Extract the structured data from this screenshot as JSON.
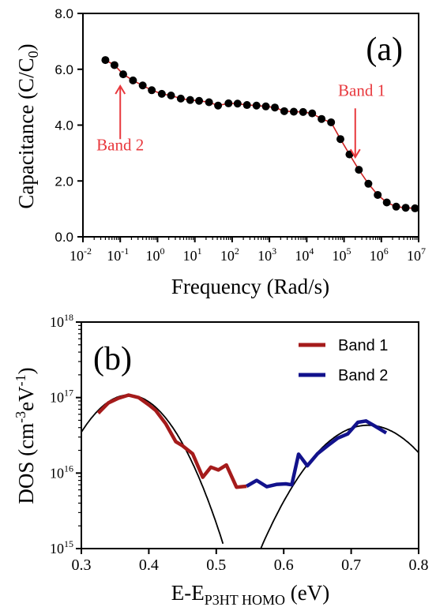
{
  "colors": {
    "axis": "#000000",
    "marker": "#000000",
    "fit_line": "#cc2222",
    "annotation": "#e8383d",
    "band1": "#a51b1b",
    "band2": "#12128c",
    "gaussian": "#000000"
  },
  "chart_data": [
    {
      "type": "scatter",
      "panel_label": "(a)",
      "xlabel": "Frequency (Rad/s)",
      "ylabel": "Capacitance (C/C",
      "ylabel_sub": "0",
      "ylabel_close": ")",
      "x_scale": "log",
      "xlim": [
        0.01,
        10000000
      ],
      "ylim": [
        0,
        8
      ],
      "x_tick_exponents": [
        "-2",
        "-1",
        "0",
        "1",
        "2",
        "3",
        "4",
        "5",
        "6",
        "7"
      ],
      "x_tick_base": "10",
      "y_ticks": [
        "0.0",
        "2.0",
        "4.0",
        "6.0",
        "8.0"
      ],
      "y_tick_values": [
        0,
        2,
        4,
        6,
        8
      ],
      "grid": false,
      "points": [
        [
          0.04,
          6.33
        ],
        [
          0.07,
          6.15
        ],
        [
          0.12,
          5.82
        ],
        [
          0.22,
          5.6
        ],
        [
          0.4,
          5.42
        ],
        [
          0.7,
          5.25
        ],
        [
          1.3,
          5.12
        ],
        [
          2.3,
          5.06
        ],
        [
          4.2,
          4.95
        ],
        [
          7.5,
          4.9
        ],
        [
          13,
          4.87
        ],
        [
          24,
          4.82
        ],
        [
          42,
          4.7
        ],
        [
          80,
          4.78
        ],
        [
          140,
          4.77
        ],
        [
          250,
          4.72
        ],
        [
          450,
          4.7
        ],
        [
          800,
          4.67
        ],
        [
          1400,
          4.63
        ],
        [
          2500,
          4.5
        ],
        [
          4500,
          4.48
        ],
        [
          8000,
          4.47
        ],
        [
          14000,
          4.42
        ],
        [
          25000,
          4.22
        ],
        [
          45000,
          4.1
        ],
        [
          80000,
          3.5
        ],
        [
          140000,
          2.95
        ],
        [
          250000,
          2.4
        ],
        [
          450000,
          1.9
        ],
        [
          800000,
          1.5
        ],
        [
          1400000,
          1.23
        ],
        [
          2500000,
          1.08
        ],
        [
          4500000,
          1.04
        ],
        [
          8000000,
          1.02
        ]
      ],
      "annotations": [
        {
          "text": "Band 1",
          "text_x": 300000,
          "text_y": 5.05,
          "arrow_from": [
            200000,
            4.6
          ],
          "arrow_to": [
            200000,
            2.85
          ]
        },
        {
          "text": "Band 2",
          "text_x": 0.1,
          "text_y": 3.1,
          "arrow_from": [
            0.1,
            3.5
          ],
          "arrow_to": [
            0.1,
            5.4
          ]
        }
      ]
    },
    {
      "type": "line",
      "panel_label": "(b)",
      "xlabel_main": "E-E",
      "xlabel_sub": "P3HT HOMO",
      "xlabel_close": " (eV)",
      "ylabel_main": "DOS (cm",
      "ylabel_sup1": "-3",
      "ylabel_mid": "eV",
      "ylabel_sup2": "-1",
      "ylabel_close": ")",
      "y_scale": "log",
      "xlim": [
        0.3,
        0.8
      ],
      "ylim": [
        1000000000000000.0,
        1e+18
      ],
      "x_ticks": [
        "0.3",
        "0.4",
        "0.5",
        "0.6",
        "0.7",
        "0.8"
      ],
      "x_tick_values": [
        0.3,
        0.4,
        0.5,
        0.6,
        0.7,
        0.8
      ],
      "y_tick_exponents": [
        "15",
        "16",
        "17",
        "18"
      ],
      "y_tick_base": "10",
      "legend_position": "top-right",
      "series": [
        {
          "name": "Band 1",
          "points": [
            [
              0.325,
              6.2e+16
            ],
            [
              0.34,
              8.5e+16
            ],
            [
              0.355,
              9.8e+16
            ],
            [
              0.37,
              1.08e+17
            ],
            [
              0.385,
              1e+17
            ],
            [
              0.4,
              8e+16
            ],
            [
              0.41,
              6.8e+16
            ],
            [
              0.425,
              4.5e+16
            ],
            [
              0.44,
              2.6e+16
            ],
            [
              0.45,
              2.3e+16
            ],
            [
              0.465,
              1.8e+16
            ],
            [
              0.48,
              8800000000000000.0
            ],
            [
              0.492,
              1.2e+16
            ],
            [
              0.503,
              1.1e+16
            ],
            [
              0.515,
              1.28e+16
            ],
            [
              0.53,
              6500000000000000.0
            ],
            [
              0.545,
              6700000000000000.0
            ]
          ]
        },
        {
          "name": "Band 2",
          "points": [
            [
              0.545,
              6700000000000000.0
            ],
            [
              0.56,
              8000000000000000.0
            ],
            [
              0.575,
              6600000000000000.0
            ],
            [
              0.59,
              7100000000000000.0
            ],
            [
              0.603,
              7200000000000000.0
            ],
            [
              0.612,
              7000000000000000.0
            ],
            [
              0.622,
              1.78e+16
            ],
            [
              0.635,
              1.25e+16
            ],
            [
              0.65,
              1.8e+16
            ],
            [
              0.665,
              2.3e+16
            ],
            [
              0.68,
              2.9e+16
            ],
            [
              0.695,
              3.3e+16
            ],
            [
              0.71,
              4.7e+16
            ],
            [
              0.722,
              4.9e+16
            ],
            [
              0.735,
              4.2e+16
            ],
            [
              0.752,
              3.4e+16
            ]
          ]
        }
      ],
      "gaussian_fits": [
        {
          "peak": 1.08e+17,
          "center": 0.37,
          "sigma": 0.0465,
          "x_range": [
            0.3,
            0.51
          ]
        },
        {
          "peak": 4.3e+16,
          "center": 0.725,
          "sigma": 0.058,
          "x_range": [
            0.54,
            0.8
          ]
        }
      ]
    }
  ]
}
